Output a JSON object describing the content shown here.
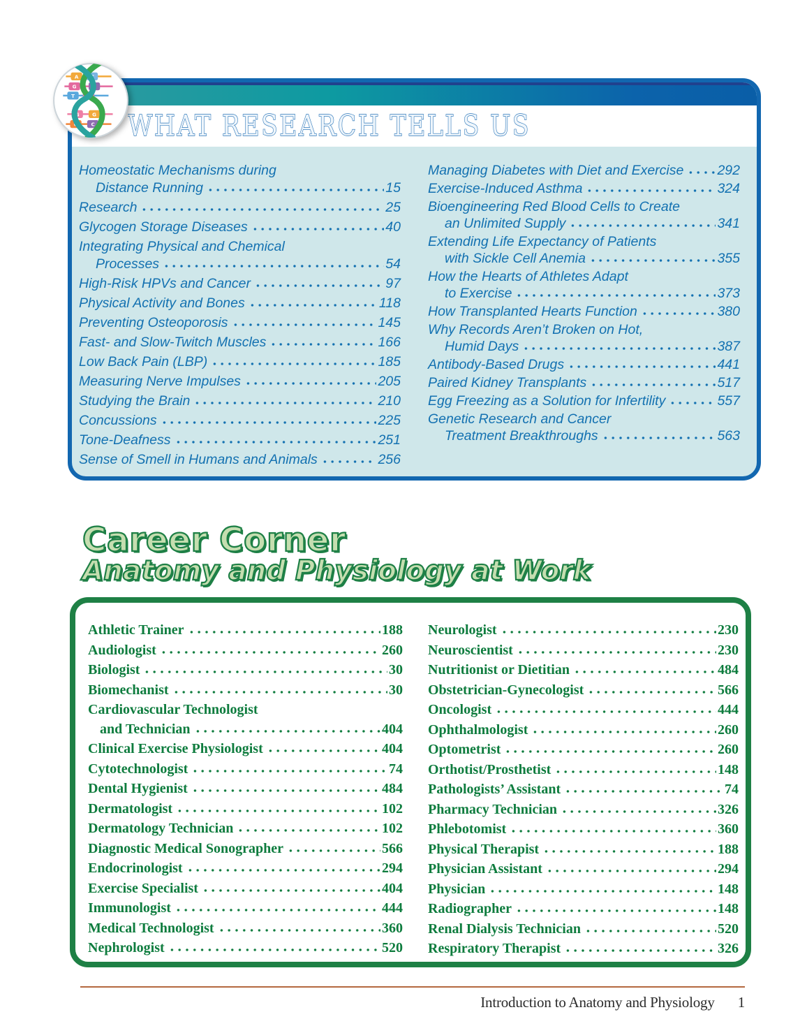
{
  "research_box": {
    "title": "WHAT RESEARCH TELLS US",
    "entries_left": [
      {
        "lines": [
          "Homeostatic Mechanisms during",
          "Distance Running"
        ],
        "page": "15"
      },
      {
        "lines": [
          "Research"
        ],
        "page": "25"
      },
      {
        "lines": [
          "Glycogen Storage Diseases"
        ],
        "page": "40"
      },
      {
        "lines": [
          "Integrating Physical and Chemical",
          "Processes"
        ],
        "page": "54"
      },
      {
        "lines": [
          "High-Risk HPVs and Cancer"
        ],
        "page": "97"
      },
      {
        "lines": [
          "Physical Activity and Bones"
        ],
        "page": "118"
      },
      {
        "lines": [
          "Preventing Osteoporosis"
        ],
        "page": "145"
      },
      {
        "lines": [
          "Fast- and Slow-Twitch Muscles"
        ],
        "page": "166"
      },
      {
        "lines": [
          "Low Back Pain (LBP)"
        ],
        "page": "185"
      },
      {
        "lines": [
          "Measuring Nerve Impulses"
        ],
        "page": "205"
      },
      {
        "lines": [
          "Studying the Brain"
        ],
        "page": "210"
      },
      {
        "lines": [
          "Concussions"
        ],
        "page": "225"
      },
      {
        "lines": [
          "Tone-Deafness"
        ],
        "page": "251"
      },
      {
        "lines": [
          "Sense of Smell in Humans and Animals"
        ],
        "page": "256"
      }
    ],
    "entries_right": [
      {
        "lines": [
          "Managing Diabetes with Diet and Exercise"
        ],
        "page": "292"
      },
      {
        "lines": [
          "Exercise-Induced Asthma"
        ],
        "page": "324"
      },
      {
        "lines": [
          "Bioengineering Red Blood Cells to Create",
          "an Unlimited Supply"
        ],
        "page": "341"
      },
      {
        "lines": [
          "Extending Life Expectancy of Patients",
          "with Sickle Cell Anemia"
        ],
        "page": "355"
      },
      {
        "lines": [
          "How the Hearts of Athletes Adapt",
          "to Exercise"
        ],
        "page": "373"
      },
      {
        "lines": [
          "How Transplanted Hearts Function"
        ],
        "page": "380"
      },
      {
        "lines": [
          "Why Records Aren’t Broken on Hot,",
          "Humid Days"
        ],
        "page": "387"
      },
      {
        "lines": [
          "Antibody-Based Drugs"
        ],
        "page": "441"
      },
      {
        "lines": [
          "Paired Kidney Transplants"
        ],
        "page": "517"
      },
      {
        "lines": [
          "Egg Freezing as a Solution for Infertility"
        ],
        "page": "557"
      },
      {
        "lines": [
          "Genetic Research and Cancer",
          "Treatment Breakthroughs"
        ],
        "page": "563"
      }
    ]
  },
  "career_box": {
    "title": "Career Corner",
    "subtitle": "Anatomy and Physiology at Work",
    "entries_left": [
      {
        "lines": [
          "Athletic Trainer"
        ],
        "page": "188"
      },
      {
        "lines": [
          "Audiologist"
        ],
        "page": "260"
      },
      {
        "lines": [
          "Biologist"
        ],
        "page": "30"
      },
      {
        "lines": [
          "Biomechanist"
        ],
        "page": "30"
      },
      {
        "lines": [
          "Cardiovascular Technologist",
          "and Technician"
        ],
        "page": "404"
      },
      {
        "lines": [
          "Clinical Exercise Physiologist"
        ],
        "page": "404"
      },
      {
        "lines": [
          "Cytotechnologist"
        ],
        "page": "74"
      },
      {
        "lines": [
          "Dental Hygienist"
        ],
        "page": "484"
      },
      {
        "lines": [
          "Dermatologist"
        ],
        "page": "102"
      },
      {
        "lines": [
          "Dermatology Technician"
        ],
        "page": "102"
      },
      {
        "lines": [
          "Diagnostic Medical Sonographer"
        ],
        "page": "566"
      },
      {
        "lines": [
          "Endocrinologist"
        ],
        "page": "294"
      },
      {
        "lines": [
          "Exercise Specialist"
        ],
        "page": "404"
      },
      {
        "lines": [
          "Immunologist"
        ],
        "page": "444"
      },
      {
        "lines": [
          "Medical Technologist"
        ],
        "page": "360"
      },
      {
        "lines": [
          "Nephrologist"
        ],
        "page": "520"
      }
    ],
    "entries_right": [
      {
        "lines": [
          "Neurologist"
        ],
        "page": "230"
      },
      {
        "lines": [
          "Neuroscientist"
        ],
        "page": "230"
      },
      {
        "lines": [
          "Nutritionist or Dietitian"
        ],
        "page": "484"
      },
      {
        "lines": [
          "Obstetrician-Gynecologist"
        ],
        "page": "566"
      },
      {
        "lines": [
          "Oncologist"
        ],
        "page": "444"
      },
      {
        "lines": [
          "Ophthalmologist"
        ],
        "page": "260"
      },
      {
        "lines": [
          "Optometrist"
        ],
        "page": "260"
      },
      {
        "lines": [
          "Orthotist/Prosthetist"
        ],
        "page": "148"
      },
      {
        "lines": [
          "Pathologists’ Assistant"
        ],
        "page": "74"
      },
      {
        "lines": [
          "Pharmacy Technician"
        ],
        "page": "326"
      },
      {
        "lines": [
          "Phlebotomist"
        ],
        "page": "360"
      },
      {
        "lines": [
          "Physical Therapist"
        ],
        "page": "188"
      },
      {
        "lines": [
          "Physician Assistant"
        ],
        "page": "294"
      },
      {
        "lines": [
          "Physician"
        ],
        "page": "148"
      },
      {
        "lines": [
          "Radiographer"
        ],
        "page": "148"
      },
      {
        "lines": [
          "Renal Dialysis Technician"
        ],
        "page": "520"
      },
      {
        "lines": [
          "Respiratory Therapist"
        ],
        "page": "326"
      }
    ]
  },
  "logo": {
    "description": "DNA double helix logo",
    "base_pairs": [
      [
        "A",
        "T"
      ],
      [
        "G",
        "G"
      ],
      [
        "T",
        "A"
      ],
      [
        "G",
        "G"
      ],
      [
        "G",
        "C"
      ]
    ]
  },
  "footer": {
    "text": "Introduction to Anatomy and Physiology",
    "page_number": "1"
  },
  "colors": {
    "research-border": "#1267b0",
    "research-bg": "#cfe7ea",
    "research-text": "#1371b1",
    "research-title-stroke": "#2e78ba",
    "bar-teal": "#0d9aa1",
    "bar-navy": "#20418e",
    "career-border": "#1e8045",
    "career-text": "#0e7c3e",
    "career-fill": "#c5deb0",
    "career-stroke": "#1e8046",
    "footer-rule": "#b4683f"
  }
}
